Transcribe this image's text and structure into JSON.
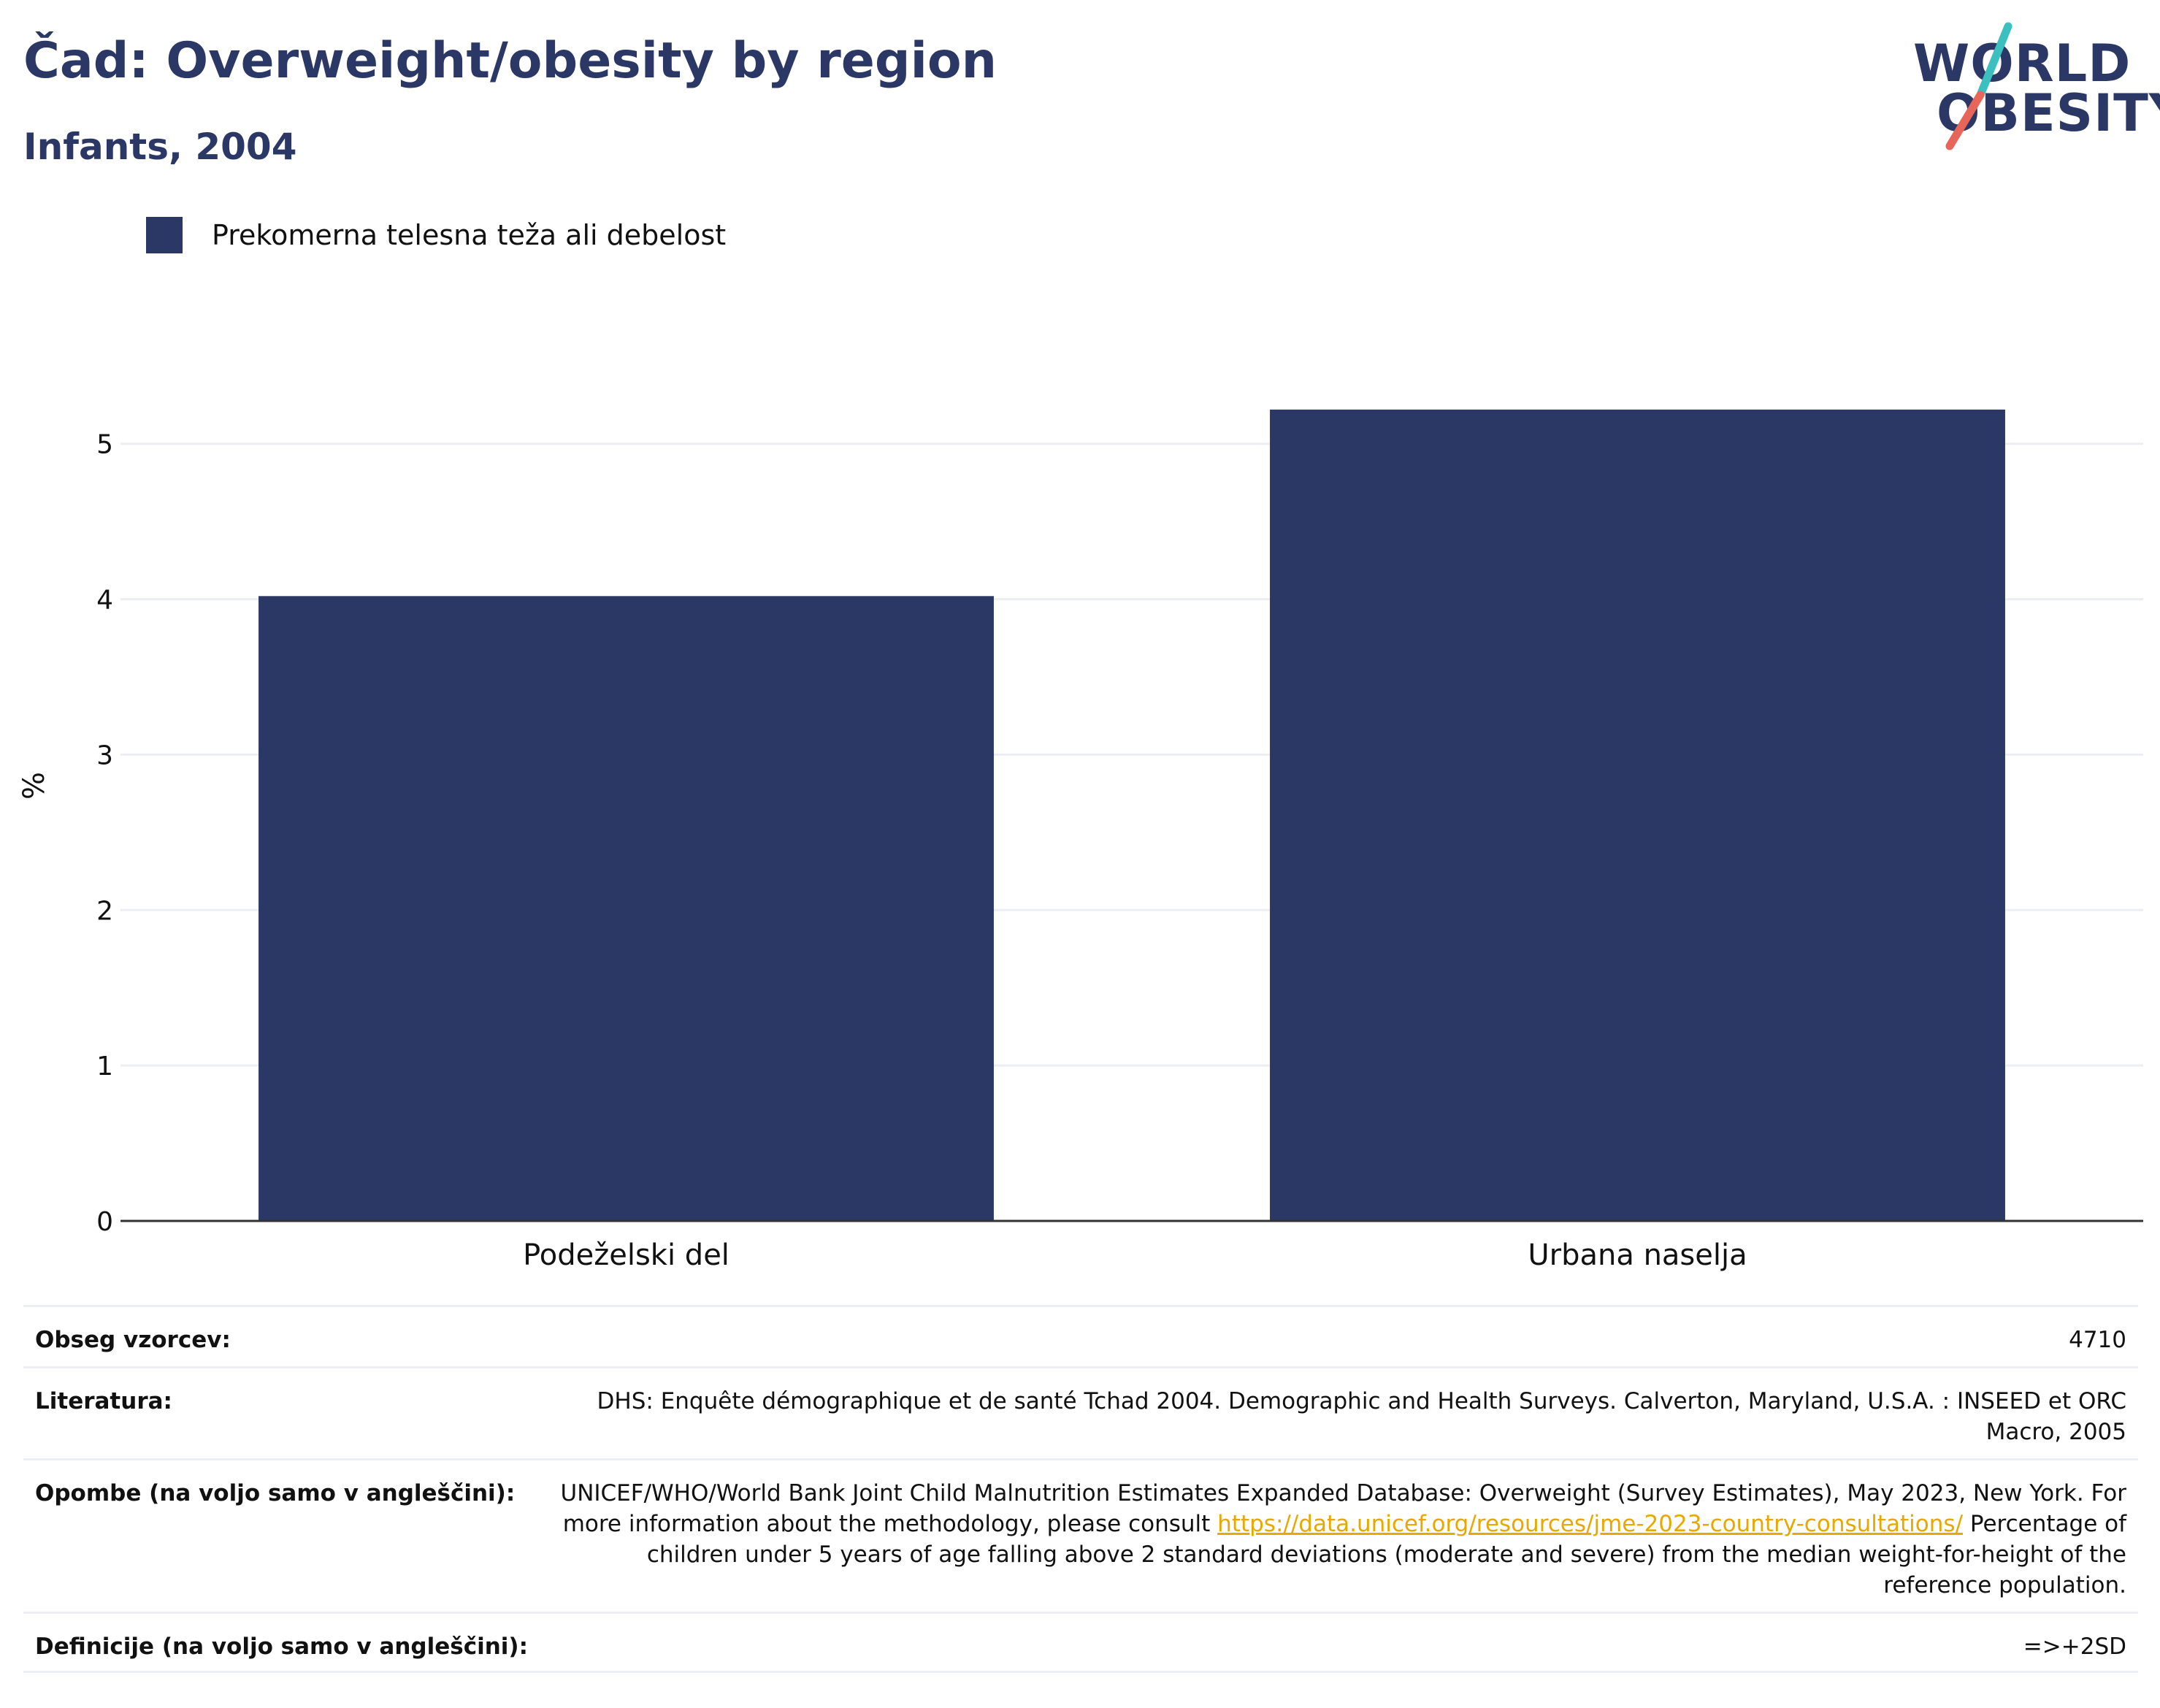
{
  "header": {
    "title": "Čad: Overweight/obesity by region",
    "subtitle": "Infants, 2004"
  },
  "logo": {
    "line1": "WORLD",
    "line2": "OBESITY",
    "accent_teal": "#3bbfbf",
    "accent_red": "#e8655a"
  },
  "colors": {
    "bar": "#2b3764",
    "title": "#2b3764",
    "grid": "#eceef3",
    "axis": "#333333",
    "link": "#e8a800"
  },
  "chart_data": {
    "type": "bar",
    "title": "Čad: Overweight/obesity by region",
    "subtitle": "Infants, 2004",
    "categories": [
      "Podeželski del",
      "Urbana naselja"
    ],
    "series": [
      {
        "name": "Prekomerna telesna teža ali debelost",
        "values": [
          4.02,
          5.22
        ]
      }
    ],
    "ylabel": "%",
    "xlabel": "",
    "ylim": [
      0,
      5.6
    ],
    "yticks": [
      0,
      1,
      2,
      3,
      4,
      5
    ],
    "grid": true,
    "legend": "top-left"
  },
  "meta": {
    "rows": [
      {
        "label": "Obseg vzorcev:",
        "value": "4710"
      },
      {
        "label": "Literatura:",
        "value": "DHS: Enquête démographique et de santé Tchad 2004. Demographic and Health Surveys. Calverton, Maryland, U.S.A. : INSEED et ORC Macro, 2005"
      },
      {
        "label": "Opombe (na voljo samo v angleščini):",
        "value_before": "UNICEF/WHO/World Bank Joint Child Malnutrition Estimates Expanded Database: Overweight (Survey Estimates), May 2023, New York. For more information about the methodology, please consult ",
        "link": "https://data.unicef.org/resources/jme-2023-country-consultations/",
        "value_after": " Percentage of children under 5 years of age falling above 2 standard deviations (moderate and severe) from the median weight-for-height of the reference population."
      },
      {
        "label": "Definicije (na voljo samo v angleščini):",
        "value": "=>+2SD"
      }
    ]
  }
}
